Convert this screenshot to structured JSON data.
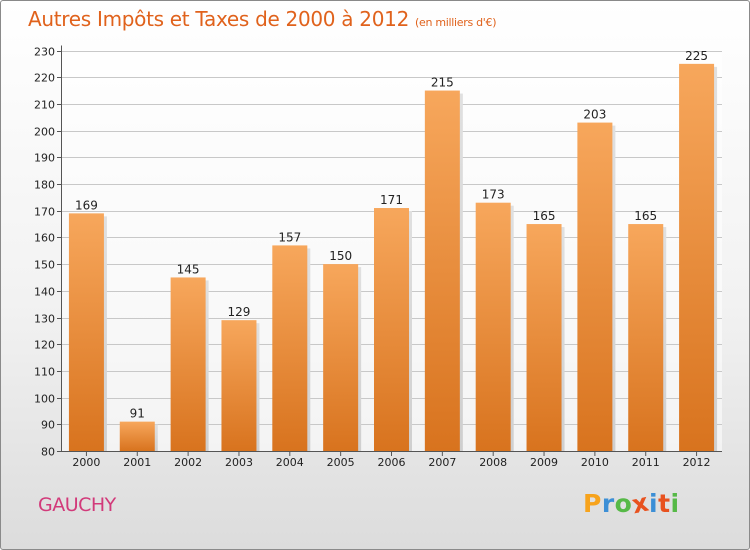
{
  "title": {
    "main": "Autres Impôts et Taxes de 2000 à 2012",
    "sub": "(en milliers d'€)"
  },
  "commune": "GAUCHY",
  "logo": {
    "letters": [
      "P",
      "r",
      "o",
      "x",
      "i",
      "t",
      "i"
    ],
    "colors": [
      "#f7a31c",
      "#3c8fd6",
      "#56b947",
      "#e8521f",
      "#3c8fd6",
      "#e8521f",
      "#56b947"
    ]
  },
  "colors": {
    "bar_top": "#f7a75c",
    "bar_bottom": "#d8731e",
    "title": "#e0621c",
    "commune": "#d23a7a",
    "grid": "#c8c8c8"
  },
  "chart_data": {
    "type": "bar",
    "categories": [
      "2000",
      "2001",
      "2002",
      "2003",
      "2004",
      "2005",
      "2006",
      "2007",
      "2008",
      "2009",
      "2010",
      "2011",
      "2012"
    ],
    "values": [
      169,
      91,
      145,
      129,
      157,
      150,
      171,
      215,
      173,
      165,
      203,
      165,
      225
    ],
    "value_labels": [
      "169",
      "91",
      "145",
      "129",
      "157",
      "150",
      "171",
      "215",
      "173",
      "165",
      "203",
      "165",
      "225"
    ],
    "ylim": [
      80,
      230
    ],
    "yticks": [
      80,
      90,
      100,
      110,
      120,
      130,
      140,
      150,
      160,
      170,
      180,
      190,
      200,
      210,
      220,
      230
    ],
    "grid": true
  }
}
